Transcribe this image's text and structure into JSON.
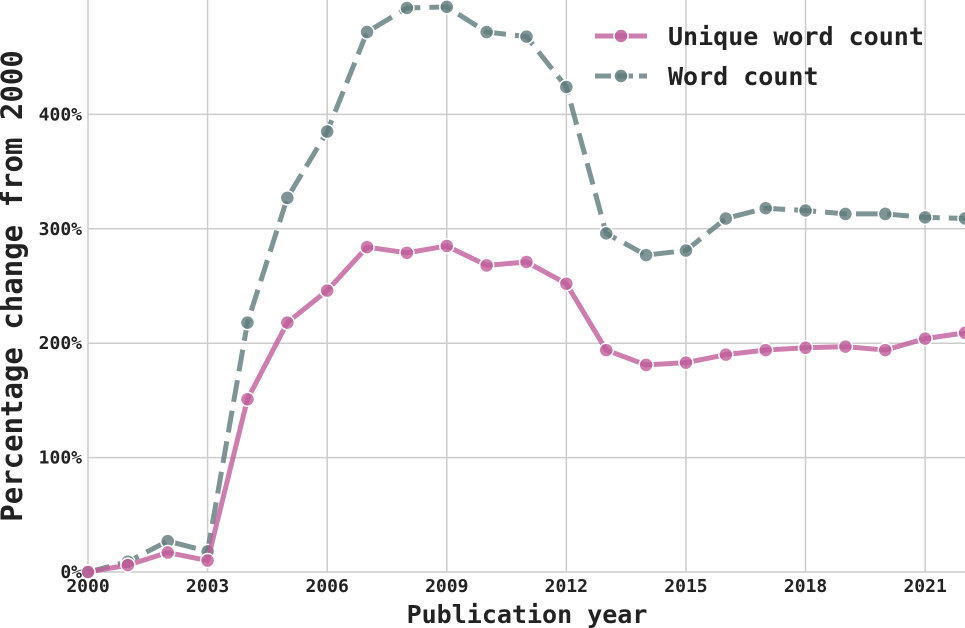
{
  "chart_data": {
    "type": "line",
    "title": "",
    "xlabel": "Publication year",
    "ylabel": "Percentage change from 2000",
    "x": [
      2000,
      2001,
      2002,
      2003,
      2004,
      2005,
      2006,
      2007,
      2008,
      2009,
      2010,
      2011,
      2012,
      2013,
      2014,
      2015,
      2016,
      2017,
      2018,
      2019,
      2020,
      2021,
      2022
    ],
    "xlim": [
      2000,
      2022
    ],
    "ylim": [
      0,
      500
    ],
    "x_ticks": [
      2000,
      2003,
      2006,
      2009,
      2012,
      2015,
      2018,
      2021
    ],
    "x_tick_labels": [
      "2000",
      "2003",
      "2006",
      "2009",
      "2012",
      "2015",
      "2018",
      "2021"
    ],
    "y_ticks": [
      0,
      100,
      200,
      300,
      400
    ],
    "y_tick_labels": [
      "0%",
      "100%",
      "200%",
      "300%",
      "400%"
    ],
    "grid": true,
    "legend_position": "top-right",
    "series": [
      {
        "name": "Unique word count",
        "color": "#c05c9a",
        "style": "solid",
        "values": [
          0,
          6,
          17,
          10,
          151,
          218,
          246,
          284,
          279,
          285,
          268,
          271,
          252,
          194,
          181,
          183,
          190,
          194,
          196,
          197,
          194,
          204,
          209
        ]
      },
      {
        "name": "Word count",
        "color": "#5f7b7a",
        "style": "dashed",
        "values": [
          0,
          9,
          27,
          18,
          218,
          327,
          385,
          472,
          493,
          494,
          472,
          468,
          424,
          296,
          277,
          281,
          309,
          318,
          316,
          313,
          313,
          310,
          309
        ]
      }
    ]
  }
}
